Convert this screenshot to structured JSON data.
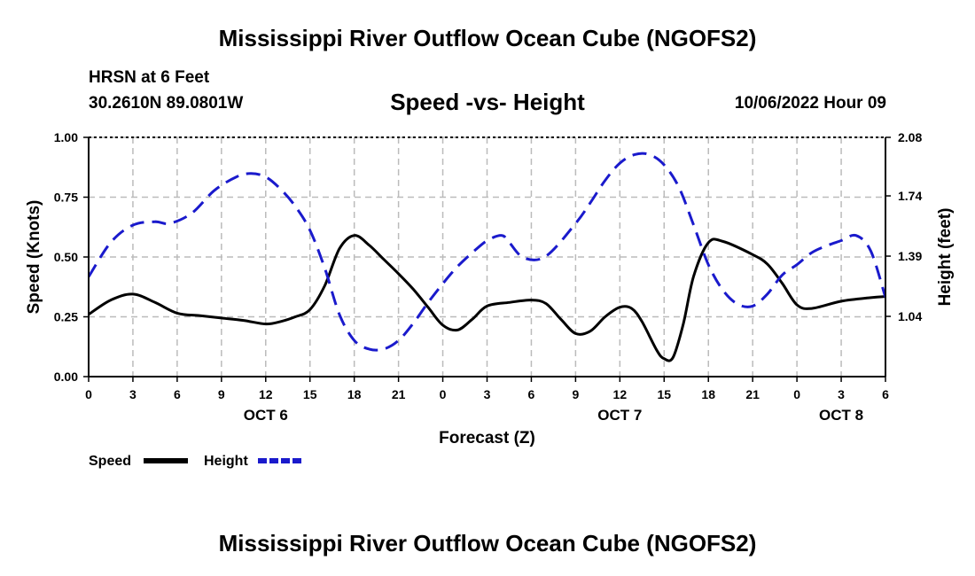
{
  "header": {
    "title": "Mississippi River Outflow Ocean Cube (NGOFS2)",
    "station": "HRSN at 6 Feet",
    "coords": "30.2610N  89.0801W",
    "subtitle": "Speed -vs- Height",
    "datetime": "10/06/2022 Hour 09"
  },
  "footer": {
    "title": "Mississippi River Outflow Ocean Cube (NGOFS2)"
  },
  "colors": {
    "speed": "#000000",
    "height": "#1a1acc",
    "grid": "#bbbbbb"
  },
  "chart_data": {
    "type": "line",
    "xlabel": "Forecast (Z)",
    "ylabel_left": "Speed (Knots)",
    "ylabel_right": "Height (feet)",
    "x_range_hours": [
      0,
      54
    ],
    "x_ticks": [
      {
        "h": 0,
        "label": "0"
      },
      {
        "h": 3,
        "label": "3"
      },
      {
        "h": 6,
        "label": "6"
      },
      {
        "h": 9,
        "label": "9"
      },
      {
        "h": 12,
        "label": "12"
      },
      {
        "h": 15,
        "label": "15"
      },
      {
        "h": 18,
        "label": "18"
      },
      {
        "h": 21,
        "label": "21"
      },
      {
        "h": 24,
        "label": "0"
      },
      {
        "h": 27,
        "label": "3"
      },
      {
        "h": 30,
        "label": "6"
      },
      {
        "h": 33,
        "label": "9"
      },
      {
        "h": 36,
        "label": "12"
      },
      {
        "h": 39,
        "label": "15"
      },
      {
        "h": 42,
        "label": "18"
      },
      {
        "h": 45,
        "label": "21"
      },
      {
        "h": 48,
        "label": "0"
      },
      {
        "h": 51,
        "label": "3"
      },
      {
        "h": 54,
        "label": "6"
      }
    ],
    "day_labels": [
      {
        "h": 12,
        "label": "OCT 6"
      },
      {
        "h": 36,
        "label": "OCT 7"
      },
      {
        "h": 51,
        "label": "OCT 8"
      }
    ],
    "y_left": {
      "range": [
        0,
        1
      ],
      "ticks": [
        "0.00",
        "0.25",
        "0.50",
        "0.75",
        "1.00"
      ]
    },
    "y_right": {
      "range": [
        0.69,
        2.08
      ],
      "ticks": [
        "1.04",
        "1.39",
        "1.74",
        "2.08"
      ]
    },
    "series": [
      {
        "name": "Speed",
        "axis": "left",
        "style": "solid",
        "x": [
          0,
          1.5,
          3,
          4.5,
          6,
          7.5,
          9,
          10.5,
          12,
          13,
          14,
          15,
          16,
          17,
          18,
          19,
          20,
          21,
          22,
          23,
          24,
          25,
          26,
          27,
          28.5,
          30,
          31,
          32,
          33,
          34,
          35,
          36,
          36.8,
          37.5,
          38.5,
          39,
          39.6,
          40.3,
          41,
          42,
          43,
          45,
          46,
          47,
          48,
          49,
          51,
          53,
          54
        ],
        "y": [
          0.26,
          0.32,
          0.345,
          0.31,
          0.265,
          0.255,
          0.245,
          0.235,
          0.22,
          0.23,
          0.25,
          0.28,
          0.38,
          0.535,
          0.59,
          0.55,
          0.49,
          0.43,
          0.365,
          0.29,
          0.215,
          0.195,
          0.24,
          0.295,
          0.31,
          0.32,
          0.305,
          0.24,
          0.18,
          0.19,
          0.25,
          0.29,
          0.285,
          0.23,
          0.11,
          0.075,
          0.08,
          0.22,
          0.42,
          0.56,
          0.565,
          0.51,
          0.47,
          0.39,
          0.3,
          0.285,
          0.315,
          0.33,
          0.335
        ]
      },
      {
        "name": "Height",
        "axis": "right",
        "style": "dashed",
        "x": [
          0,
          1.5,
          3,
          4.5,
          5.5,
          7,
          8.5,
          10,
          11,
          12,
          13,
          14,
          15,
          16,
          17,
          18,
          19,
          20,
          21,
          22,
          23,
          24,
          25,
          26,
          27,
          28,
          28.5,
          29.5,
          31,
          33,
          34,
          35,
          36,
          37,
          38,
          39,
          40,
          41,
          42,
          43,
          44,
          45,
          46,
          47,
          48,
          49,
          50,
          51,
          52,
          53,
          54
        ],
        "y": [
          1.27,
          1.47,
          1.57,
          1.59,
          1.58,
          1.64,
          1.77,
          1.85,
          1.87,
          1.85,
          1.78,
          1.68,
          1.54,
          1.32,
          1.05,
          0.9,
          0.85,
          0.85,
          0.9,
          1.0,
          1.12,
          1.23,
          1.33,
          1.41,
          1.48,
          1.51,
          1.47,
          1.38,
          1.39,
          1.58,
          1.7,
          1.83,
          1.93,
          1.98,
          1.98,
          1.92,
          1.79,
          1.57,
          1.34,
          1.19,
          1.11,
          1.1,
          1.17,
          1.28,
          1.34,
          1.41,
          1.45,
          1.48,
          1.51,
          1.42,
          1.15
        ]
      }
    ],
    "legend": [
      {
        "name": "Speed",
        "style": "solid"
      },
      {
        "name": "Height",
        "style": "dashed"
      }
    ]
  }
}
